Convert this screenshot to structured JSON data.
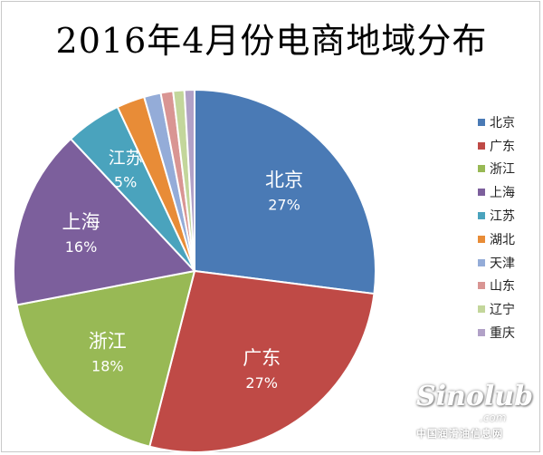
{
  "chart_data": {
    "type": "pie",
    "title": "2016年4月份电商地域分布",
    "start_angle_deg": 0,
    "direction": "clockwise",
    "legend_position": "right",
    "slices": [
      {
        "name": "北京",
        "value": 27,
        "label": "27%",
        "color": "#4a7ab5"
      },
      {
        "name": "广东",
        "value": 27,
        "label": "27%",
        "color": "#bf4a46"
      },
      {
        "name": "浙江",
        "value": 18,
        "label": "18%",
        "color": "#98b955"
      },
      {
        "name": "上海",
        "value": 16,
        "label": "16%",
        "color": "#7c5f9c"
      },
      {
        "name": "江苏",
        "value": 5,
        "label": "5%",
        "color": "#4aa3bd"
      },
      {
        "name": "湖北",
        "value": 2.5,
        "label": "",
        "color": "#e88c37"
      },
      {
        "name": "天津",
        "value": 1.5,
        "label": "",
        "color": "#94acd8"
      },
      {
        "name": "山东",
        "value": 1.1,
        "label": "",
        "color": "#d99593"
      },
      {
        "name": "辽宁",
        "value": 1.0,
        "label": "",
        "color": "#c3d69b"
      },
      {
        "name": "重庆",
        "value": 0.9,
        "label": "",
        "color": "#b1a1c7"
      }
    ]
  },
  "watermark": {
    "logo_text": "Sinolub",
    "domain_text": ".com",
    "subtitle": "中国润滑油信息网"
  }
}
